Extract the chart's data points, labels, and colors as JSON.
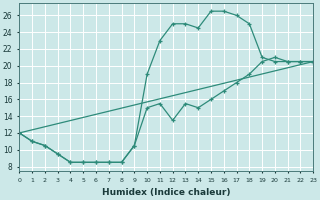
{
  "xlabel": "Humidex (Indice chaleur)",
  "bg_color": "#cce8e8",
  "line_color": "#2e8b7a",
  "grid_color": "#ffffff",
  "line1_x": [
    0,
    1,
    2,
    3,
    4,
    5,
    6,
    7,
    8,
    9,
    10,
    11,
    12,
    13,
    14,
    15,
    16,
    17,
    18,
    19,
    20,
    21,
    22,
    23
  ],
  "line1_y": [
    12.0,
    11.0,
    10.5,
    9.5,
    8.5,
    8.5,
    8.5,
    8.5,
    8.5,
    10.5,
    19.0,
    23.0,
    25.0,
    25.0,
    24.5,
    26.5,
    26.5,
    26.0,
    25.0,
    21.0,
    20.5,
    20.5,
    20.5,
    20.5
  ],
  "line2_x": [
    0,
    1,
    2,
    3,
    4,
    5,
    6,
    7,
    8,
    9,
    10,
    11,
    12,
    13,
    14,
    15,
    16,
    17,
    18,
    19,
    20,
    21,
    22,
    23
  ],
  "line2_y": [
    12.0,
    11.0,
    10.5,
    9.5,
    8.5,
    8.5,
    8.5,
    8.5,
    8.5,
    10.5,
    15.0,
    15.5,
    13.5,
    15.5,
    15.0,
    16.0,
    17.0,
    18.0,
    19.0,
    20.5,
    21.0,
    20.5,
    20.5,
    20.5
  ],
  "line3_x": [
    0,
    23
  ],
  "line3_y": [
    12.0,
    20.5
  ],
  "xlim": [
    0,
    23
  ],
  "ylim": [
    7.5,
    27.5
  ],
  "xticks": [
    0,
    1,
    2,
    3,
    4,
    5,
    6,
    7,
    8,
    9,
    10,
    11,
    12,
    13,
    14,
    15,
    16,
    17,
    18,
    19,
    20,
    21,
    22,
    23
  ],
  "yticks": [
    8,
    10,
    12,
    14,
    16,
    18,
    20,
    22,
    24,
    26
  ],
  "marker": "+"
}
